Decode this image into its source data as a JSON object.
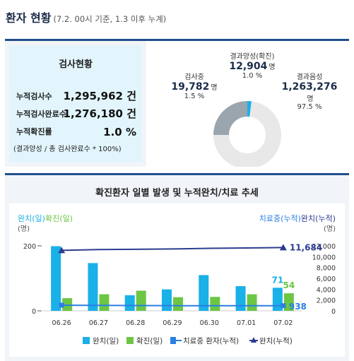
{
  "header": {
    "title": "환자 현황",
    "subtitle": "(7.2. 00시 기준, 1.3 이후 누계)"
  },
  "stats": {
    "title": "검사현황",
    "rows": [
      {
        "label": "누적검사수",
        "value": "1,295,962 건"
      },
      {
        "label": "누적검사완료수",
        "value": "1,276,180 건"
      },
      {
        "label": "누적확진률",
        "value": "1.0 %"
      }
    ],
    "note": "(결과양성 / 총 검사완료수 * 100%)"
  },
  "donut": {
    "positive": {
      "label": "결과양성(확진)",
      "value": "12,904",
      "unit": "명",
      "pct": "1.0 %",
      "fraction": 0.01
    },
    "testing": {
      "label": "검사중",
      "value": "19,782",
      "unit": "명",
      "pct": "1.5 %",
      "fraction": 0.015
    },
    "negative": {
      "label": "결과음성",
      "value": "1,263,276",
      "unit": "명",
      "pct": "97.5 %",
      "fraction": 0.975
    },
    "colors": {
      "positive": "#1ab0e8",
      "testing": "#9aa5ad",
      "negative": "#e8e8e8"
    }
  },
  "chart_data": {
    "type": "bar",
    "title": "확진환자 일별 발생 및 누적완치/치료 추세",
    "left_axis_label_1": "완치(일)",
    "left_axis_label_2": "확진(일)",
    "left_unit": "(명)",
    "right_axis_label_1": "치료중(누적)",
    "right_axis_label_2": "완치(누적)",
    "right_unit": "(명)",
    "left_ticks": [
      "200",
      "0"
    ],
    "right_ticks": [
      "12,000",
      "10,000",
      "8,000",
      "6,000",
      "4,000",
      "2,000",
      "0"
    ],
    "ylim_left": [
      0,
      200
    ],
    "ylim_right": [
      0,
      12000
    ],
    "categories": [
      "06.26",
      "06.27",
      "06.28",
      "06.29",
      "06.30",
      "07.01",
      "07.02"
    ],
    "series": [
      {
        "name": "완치(일)",
        "kind": "bar",
        "axis": "left",
        "color": "#1ab0e8",
        "values": [
          199,
          147,
          48,
          66,
          110,
          76,
          71
        ]
      },
      {
        "name": "확진(일)",
        "kind": "bar",
        "axis": "left",
        "color": "#6cc644",
        "values": [
          39,
          51,
          62,
          42,
          43,
          51,
          54
        ]
      },
      {
        "name": "치료중 환자(누적)",
        "kind": "line",
        "axis": "right",
        "color": "#2a7fe0",
        "values": [
          1045,
          1004,
          980,
          956,
          940,
          941,
          938
        ]
      },
      {
        "name": "완치(누적)",
        "kind": "line",
        "axis": "right",
        "color": "#2b3c8f",
        "values": [
          11172,
          11317,
          11364,
          11429,
          11537,
          11613,
          11684
        ]
      }
    ],
    "annotations": {
      "bar_last_blue": "71",
      "bar_last_green": "54",
      "line_last_treating": "938",
      "line_last_recovered": "11,684"
    }
  }
}
